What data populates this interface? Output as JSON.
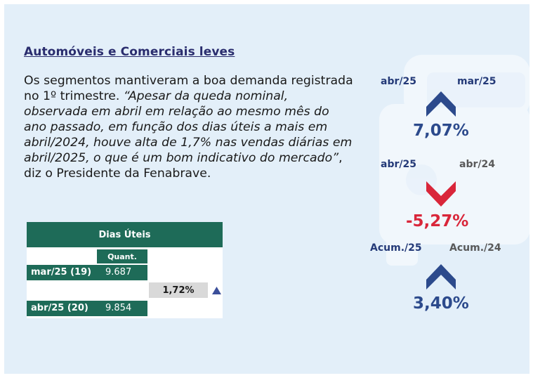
{
  "section": {
    "title": "Automóveis e Comerciais leves",
    "text_intro": "Os segmentos mantiveram a boa demanda registrada no 1º trimestre. ",
    "text_quote": "“Apesar da queda nominal, observada em abril em relação ao mesmo mês do ano passado, em função dos dias úteis a mais em abril/2024, houve alta de 1,7% nas vendas diárias em abril/2025, o que é um bom indicativo do mercado”",
    "text_outro": ", diz o Presidente da Fenabrave."
  },
  "table": {
    "header": "Dias Úteis",
    "column_label": "Quant.",
    "rows": [
      {
        "label": "mar/25 (19)",
        "value": "9.687"
      },
      {
        "label": "abr/25 (20)",
        "value": "9.854"
      }
    ],
    "variation": "1,72%",
    "variation_direction": "up"
  },
  "indicators": [
    {
      "left_label": "abr/25",
      "right_label": "mar/25",
      "value": "7,07%",
      "direction": "up",
      "color": "#2c4a8c"
    },
    {
      "left_label": "abr/25",
      "right_label": "abr/24",
      "value": "-5,27%",
      "direction": "down",
      "color": "#d9263a"
    },
    {
      "left_label": "Acum./25",
      "right_label": "Acum./24",
      "value": "3,40%",
      "direction": "up",
      "color": "#2c4a8c"
    }
  ],
  "colors": {
    "background": "#e3eff9",
    "title": "#2a2d6e",
    "table_green": "#1e6b58",
    "navy": "#2c4a8c",
    "red": "#d9263a"
  }
}
